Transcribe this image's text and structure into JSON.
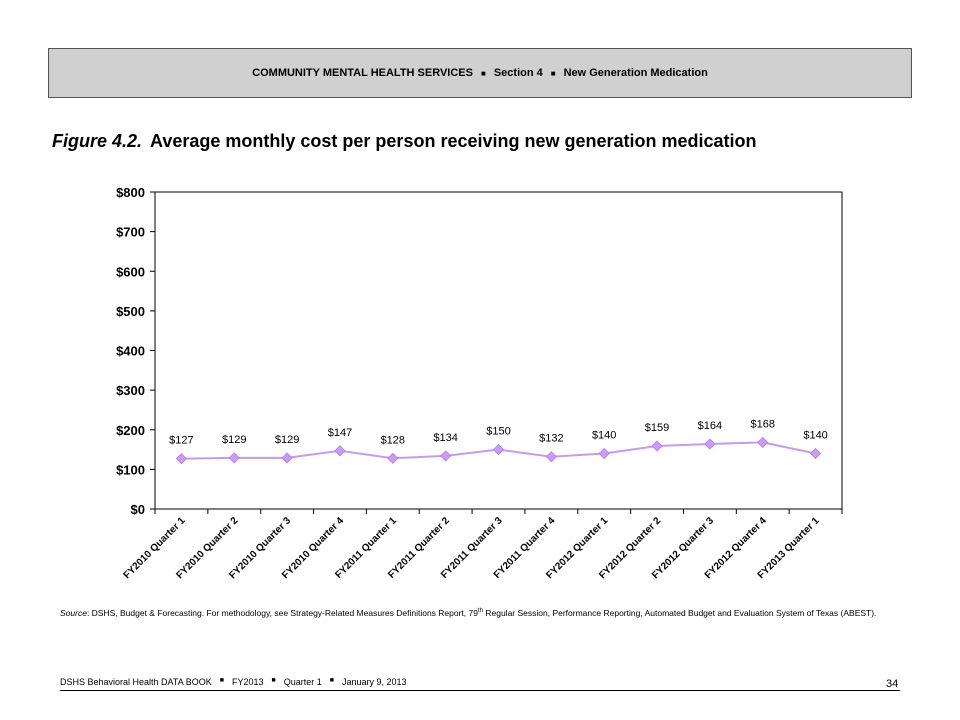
{
  "header": {
    "part1": "COMMUNITY MENTAL HEALTH SERVICES",
    "part2": "Section 4",
    "part3": "New Generation Medication",
    "separator": "■"
  },
  "figure": {
    "number": "Figure 4.2.",
    "title": "Average monthly cost per person receiving new generation medication"
  },
  "chart_data": {
    "type": "line",
    "categories": [
      "FY2010 Quarter 1",
      "FY2010 Quarter 2",
      "FY2010 Quarter 3",
      "FY2010 Quarter 4",
      "FY2011 Quarter 1",
      "FY2011 Quarter 2",
      "FY2011 Quarter 3",
      "FY2011 Quarter 4",
      "FY2012 Quarter 1",
      "FY2012 Quarter 2",
      "FY2012 Quarter 3",
      "FY2012 Quarter 4",
      "FY2013 Quarter 1"
    ],
    "values": [
      127,
      129,
      129,
      147,
      128,
      134,
      150,
      132,
      140,
      159,
      164,
      168,
      140
    ],
    "data_labels": [
      "$127",
      "$129",
      "$129",
      "$147",
      "$128",
      "$134",
      "$150",
      "$132",
      "$140",
      "$159",
      "$164",
      "$168",
      "$140"
    ],
    "yticks": [
      0,
      100,
      200,
      300,
      400,
      500,
      600,
      700,
      800
    ],
    "ytick_labels": [
      "$0",
      "$100",
      "$200",
      "$300",
      "$400",
      "$500",
      "$600",
      "$700",
      "$800"
    ],
    "ylim": [
      0,
      800
    ],
    "grid": false,
    "legend": "none",
    "line_color": "#c89be8",
    "marker_color": "#cc99ff",
    "marker": "diamond",
    "xlabel": "",
    "ylabel": ""
  },
  "source": {
    "label": "Source",
    "text_before_sup": ": DSHS, Budget & Forecasting. For methodology, see Strategy-Related Measures Definitions Report, 79",
    "sup": "th",
    "text_after_sup": " Regular Session, Performance Reporting, Automated Budget and Evaluation System of Texas (ABEST)."
  },
  "footer": {
    "book": "DSHS Behavioral Health DATA BOOK",
    "fy": "FY2013",
    "quarter": "Quarter 1",
    "date": "January  9, 2013",
    "separator": "■",
    "page": "34"
  }
}
